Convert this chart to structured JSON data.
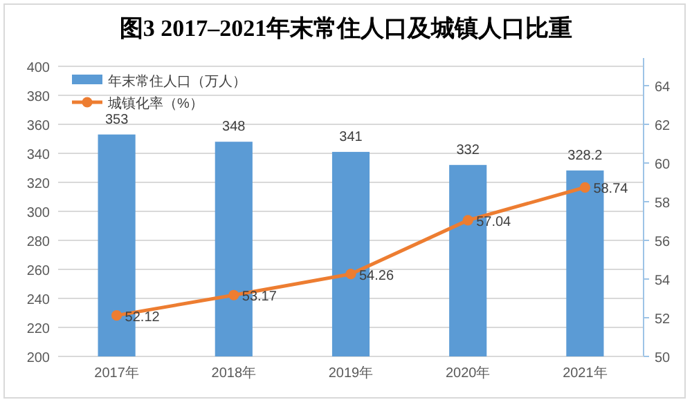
{
  "chart_data": {
    "type": "bar",
    "title": "图3  2017–2021年末常住人口及城镇人口比重",
    "categories": [
      "2017年",
      "2018年",
      "2019年",
      "2020年",
      "2021年"
    ],
    "series": [
      {
        "name": "年末常住人口（万人）",
        "color": "#5b9bd5",
        "values": [
          353,
          348,
          341,
          332,
          328.2
        ]
      },
      {
        "name": "城镇化率（%）",
        "type": "line",
        "axis": "y2",
        "color": "#ed7d31",
        "marker": "circle",
        "values": [
          52.12,
          53.17,
          54.26,
          57.04,
          58.74
        ]
      }
    ],
    "ylim": [
      200,
      400
    ],
    "yticks": [
      200,
      220,
      240,
      260,
      280,
      300,
      320,
      340,
      360,
      380,
      400
    ],
    "y2lim": [
      50,
      65
    ],
    "y2ticks": [
      50,
      52,
      54,
      56,
      58,
      60,
      62,
      64
    ],
    "grid": "y",
    "legend": "top left",
    "data_labels": true
  }
}
